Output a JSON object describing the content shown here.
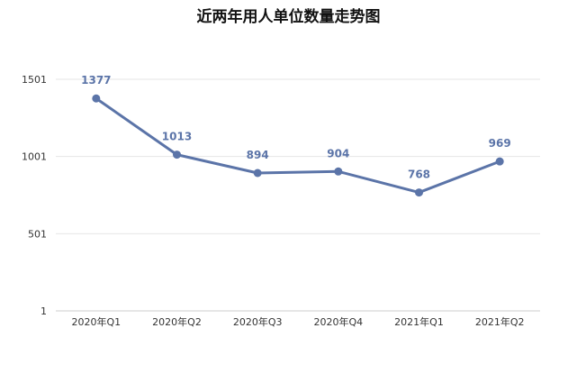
{
  "chart_data": {
    "type": "line",
    "title": "近两年用人单位数量走势图",
    "categories": [
      "2020年Q1",
      "2020年Q2",
      "2020年Q3",
      "2020年Q4",
      "2021年Q1",
      "2021年Q2"
    ],
    "series": [
      {
        "values": [
          1377,
          1013,
          894,
          904,
          768,
          969
        ],
        "color": "#5b74a8"
      }
    ],
    "yticks": [
      1,
      501,
      1001,
      1501
    ],
    "ylim": [
      1,
      1501
    ],
    "grid": true,
    "data_labels": true,
    "legend": "none"
  }
}
